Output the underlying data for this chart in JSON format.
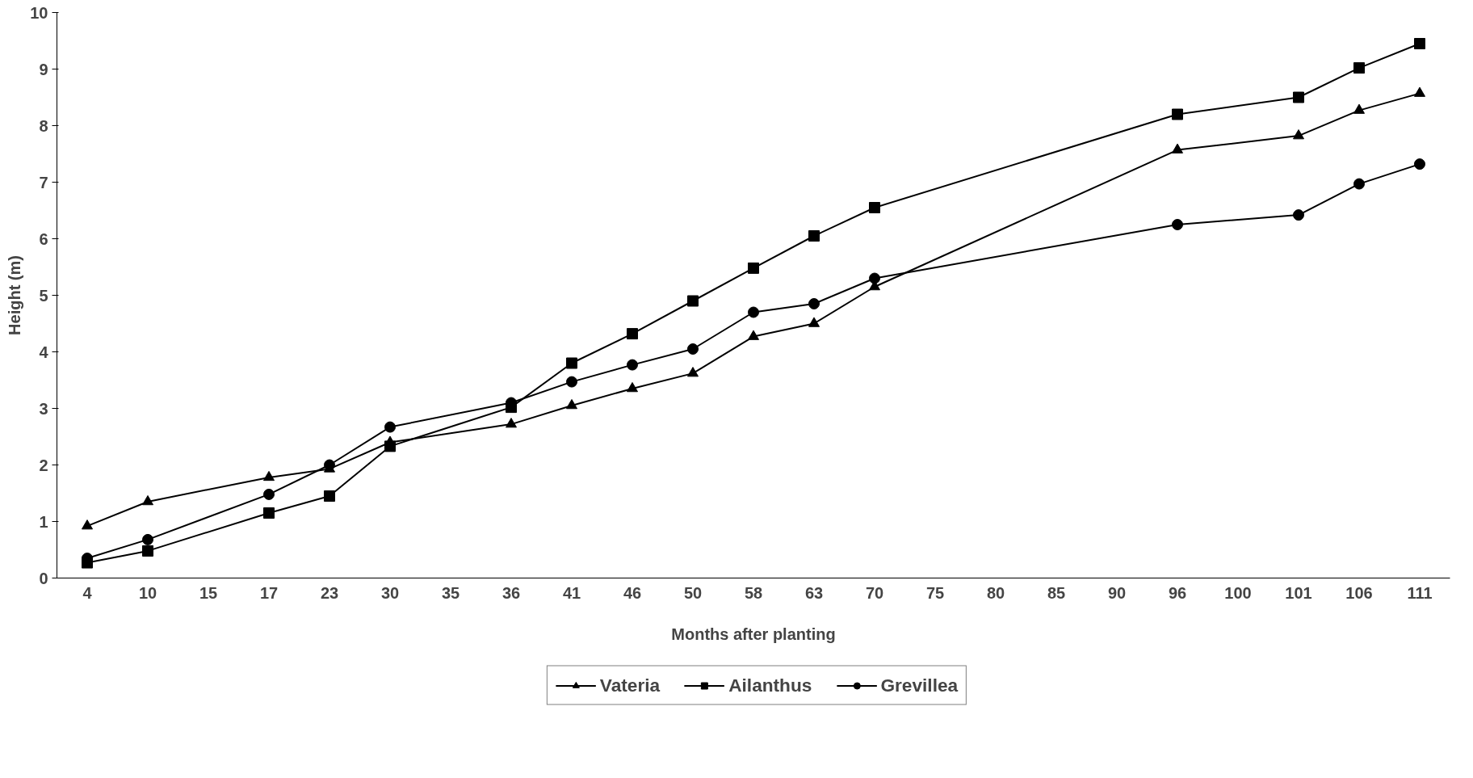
{
  "chart_data": {
    "type": "line",
    "xlabel": "Months after planting",
    "ylabel": "Height (m)",
    "categories": [
      "4",
      "10",
      "15",
      "17",
      "23",
      "30",
      "35",
      "36",
      "41",
      "46",
      "50",
      "58",
      "63",
      "70",
      "75",
      "80",
      "85",
      "90",
      "96",
      "100",
      "101",
      "106",
      "111"
    ],
    "ylim": [
      0,
      10
    ],
    "yticks": [
      0,
      1,
      2,
      3,
      4,
      5,
      6,
      7,
      8,
      9,
      10
    ],
    "grid": false,
    "legend": "bottom",
    "line_style": "solid",
    "series": [
      {
        "name": "Vateria",
        "color": "#000000",
        "marker": "triangle",
        "values": [
          0.92,
          1.35,
          null,
          1.78,
          1.93,
          2.4,
          null,
          2.72,
          3.05,
          3.35,
          3.62,
          4.27,
          4.5,
          5.15,
          null,
          null,
          null,
          null,
          7.57,
          null,
          7.82,
          8.27,
          8.57
        ]
      },
      {
        "name": "Ailanthus",
        "color": "#000000",
        "marker": "square",
        "values": [
          0.27,
          0.48,
          null,
          1.15,
          1.45,
          2.33,
          null,
          3.02,
          3.8,
          4.32,
          4.9,
          5.48,
          6.05,
          6.55,
          null,
          null,
          null,
          null,
          8.2,
          null,
          8.5,
          9.02,
          9.45
        ]
      },
      {
        "name": "Grevillea",
        "color": "#000000",
        "marker": "circle",
        "values": [
          0.35,
          0.68,
          null,
          1.48,
          2.0,
          2.67,
          null,
          3.1,
          3.47,
          3.77,
          4.05,
          4.7,
          4.85,
          5.3,
          null,
          null,
          null,
          null,
          6.25,
          null,
          6.42,
          6.97,
          7.32
        ]
      }
    ]
  }
}
